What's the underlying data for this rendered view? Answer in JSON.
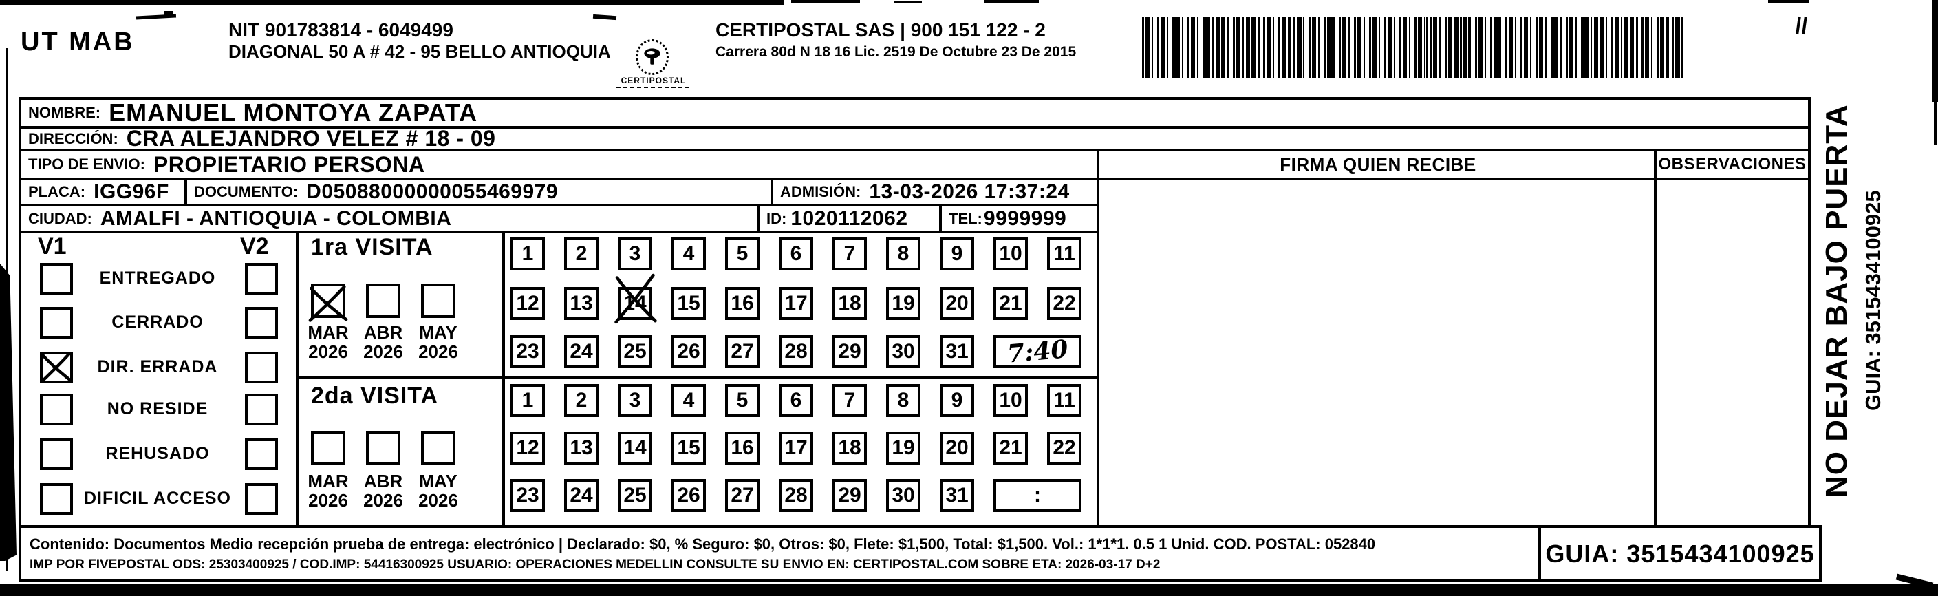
{
  "header": {
    "sender_code": "UT MAB",
    "nit_line1": "NIT 901783814 - 6049499",
    "nit_line2": "DIAGONAL 50 A # 42 - 95  BELLO  ANTIOQUIA",
    "logo_caption": "CERTIPOSTAL",
    "company_line1": "CERTIPOSTAL SAS | 900 151 122 - 2",
    "company_line2": "Carrera 80d N 18 16  Lic. 2519 De Octubre 23 De 2015"
  },
  "recipient": {
    "nombre_label": "NOMBRE:",
    "nombre": "EMANUEL MONTOYA ZAPATA",
    "direccion_label": "DIRECCIÓN:",
    "direccion": "CRA ALEJANDRO VELÉZ # 18 - 09",
    "tipo_label": "TIPO DE ENVIO:",
    "tipo": "PROPIETARIO PERSONA",
    "placa_label": "PLACA:",
    "placa": "IGG96F",
    "documento_label": "DOCUMENTO:",
    "documento": "D05088000000055469979",
    "admision_label": "ADMISIÓN:",
    "admision": "13-03-2026 17:37:24",
    "ciudad_label": "CIUDAD:",
    "ciudad": "AMALFI - ANTIOQUIA - COLOMBIA",
    "id_label": "ID:",
    "id": "1020112062",
    "tel_label": "TEL:",
    "tel": "9999999"
  },
  "signature": {
    "firma_header": "FIRMA QUIEN RECIBE",
    "observaciones_header": "OBSERVACIONES"
  },
  "status": {
    "v1_label": "V1",
    "v2_label": "V2",
    "options": [
      {
        "label": "ENTREGADO",
        "v1_checked": false,
        "v2_checked": false
      },
      {
        "label": "CERRADO",
        "v1_checked": false,
        "v2_checked": false
      },
      {
        "label": "DIR. ERRADA",
        "v1_checked": true,
        "v2_checked": false
      },
      {
        "label": "NO RESIDE",
        "v1_checked": false,
        "v2_checked": false
      },
      {
        "label": "REHUSADO",
        "v1_checked": false,
        "v2_checked": false
      },
      {
        "label": "DIFICIL ACCESO",
        "v1_checked": false,
        "v2_checked": false
      }
    ]
  },
  "visits": [
    {
      "title": "1ra VISITA",
      "months": [
        {
          "month": "MAR",
          "year": "2026",
          "checked": true
        },
        {
          "month": "ABR",
          "year": "2026",
          "checked": false
        },
        {
          "month": "MAY",
          "year": "2026",
          "checked": false
        }
      ],
      "day_rows": [
        [
          1,
          2,
          3,
          4,
          5,
          6,
          7,
          8,
          9,
          10,
          11
        ],
        [
          12,
          13,
          14,
          15,
          16,
          17,
          18,
          19,
          20,
          21,
          22
        ],
        [
          23,
          24,
          25,
          26,
          27,
          28,
          29,
          30,
          31
        ]
      ],
      "crossed_day": 14,
      "time_cell": "7:40",
      "time_cell_style": "handwritten"
    },
    {
      "title": "2da VISITA",
      "months": [
        {
          "month": "MAR",
          "year": "2026",
          "checked": false
        },
        {
          "month": "ABR",
          "year": "2026",
          "checked": false
        },
        {
          "month": "MAY",
          "year": "2026",
          "checked": false
        }
      ],
      "day_rows": [
        [
          1,
          2,
          3,
          4,
          5,
          6,
          7,
          8,
          9,
          10,
          11
        ],
        [
          12,
          13,
          14,
          15,
          16,
          17,
          18,
          19,
          20,
          21,
          22
        ],
        [
          23,
          24,
          25,
          26,
          27,
          28,
          29,
          30,
          31
        ]
      ],
      "crossed_day": null,
      "time_cell": ":",
      "time_cell_style": "printed"
    }
  ],
  "side_note": {
    "warning": "NO DEJAR BAJO PUERTA",
    "guia": "GUIA: 3515434100925"
  },
  "footer": {
    "line1": "Contenido: Documentos Medio recepción prueba de entrega: electrónico | Declarado: $0, % Seguro: $0, Otros: $0, Flete: $1,500, Total: $1,500. Vol.: 1*1*1. 0.5  1 Unid. COD. POSTAL: 052840",
    "line2": "IMP POR FIVEPOSTAL ODS: 25303400925 / COD.IMP: 54416300925 USUARIO: OPERACIONES MEDELLIN CONSULTE SU ENVIO EN: CERTIPOSTAL.COM SOBRE ETA: 2026-03-17 D+2",
    "guia_box": "GUIA: 3515434100925"
  }
}
